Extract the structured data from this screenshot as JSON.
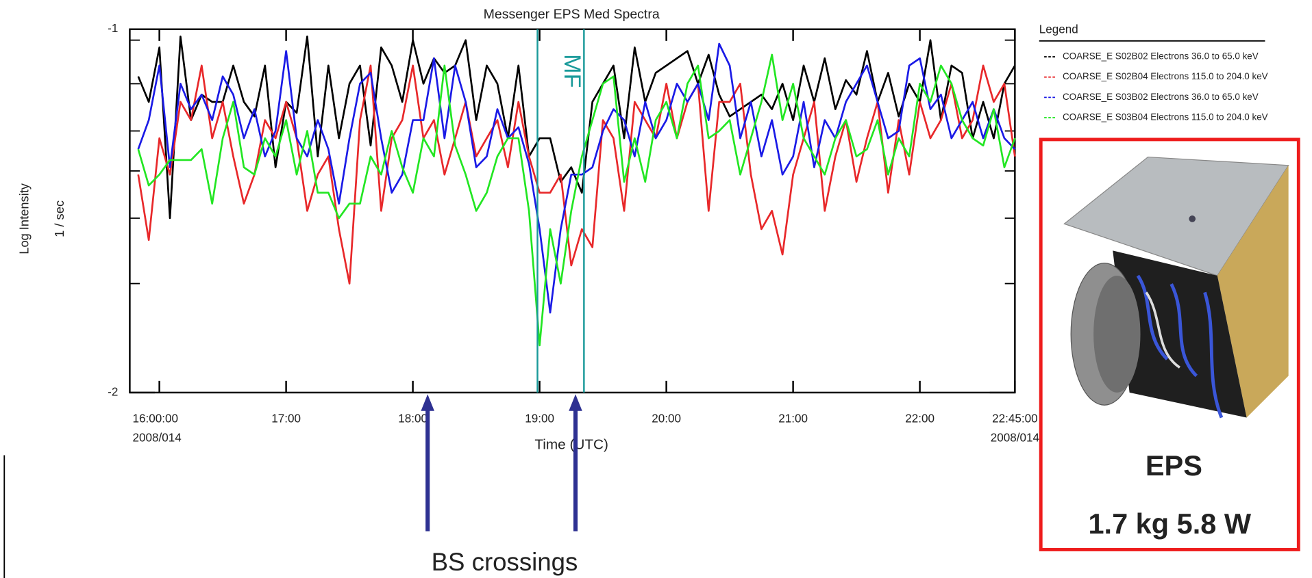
{
  "chart_data": {
    "type": "line",
    "title": "Messenger EPS Med Spectra",
    "x_label": "Time (UTC)",
    "y_label": "Log Intensity",
    "y_unit_label": "1 / sec",
    "x": [
      "15:50",
      "15:55",
      "16:00",
      "16:05",
      "16:10",
      "16:15",
      "16:20",
      "16:25",
      "16:30",
      "16:35",
      "16:40",
      "16:45",
      "16:50",
      "16:55",
      "17:00",
      "17:05",
      "17:10",
      "17:15",
      "17:20",
      "17:25",
      "17:30",
      "17:35",
      "17:40",
      "17:45",
      "17:50",
      "17:55",
      "18:00",
      "18:05",
      "18:10",
      "18:15",
      "18:20",
      "18:25",
      "18:30",
      "18:35",
      "18:40",
      "18:45",
      "18:50",
      "18:55",
      "19:00",
      "19:05",
      "19:10",
      "19:15",
      "19:20",
      "19:25",
      "19:30",
      "19:35",
      "19:40",
      "19:45",
      "19:50",
      "19:55",
      "20:00",
      "20:05",
      "20:10",
      "20:15",
      "20:20",
      "20:25",
      "20:30",
      "20:35",
      "20:40",
      "20:45",
      "20:50",
      "20:55",
      "21:00",
      "21:05",
      "21:10",
      "21:15",
      "21:20",
      "21:25",
      "21:30",
      "21:35",
      "21:40",
      "21:45",
      "21:50",
      "21:55",
      "22:00",
      "22:05",
      "22:10",
      "22:15",
      "22:20",
      "22:25",
      "22:30",
      "22:35",
      "22:40",
      "22:45"
    ],
    "xlim": [
      "15:46",
      "22:45"
    ],
    "xticks": [
      {
        "value": "16:00",
        "label": "16:00:00"
      },
      {
        "value": "17:00",
        "label": "17:00"
      },
      {
        "value": "18:00",
        "label": "18:00"
      },
      {
        "value": "19:00",
        "label": "19:00"
      },
      {
        "value": "20:00",
        "label": "20:00"
      },
      {
        "value": "21:00",
        "label": "21:00"
      },
      {
        "value": "22:00",
        "label": "22:00"
      },
      {
        "value": "22:45",
        "label": "22:45:00"
      }
    ],
    "xtick_sublabels": [
      {
        "value": "16:00",
        "label": "2008/014"
      },
      {
        "value": "22:45",
        "label": "2008/014"
      }
    ],
    "ylim": [
      -2,
      -1
    ],
    "yticks": [
      -1,
      -2
    ],
    "yminorticks": [
      -1.03,
      -1.15,
      -1.28,
      -1.39,
      -1.52,
      -1.7
    ],
    "legend_title": "Legend",
    "legend_position": "right",
    "series": [
      {
        "name": "COARSE_E S02B02 Electrons 36.0 to 65.0 keV",
        "color": "#000000",
        "values": [
          -1.13,
          -1.2,
          -1.05,
          -1.52,
          -1.02,
          -1.25,
          -1.18,
          -1.2,
          -1.2,
          -1.1,
          -1.2,
          -1.24,
          -1.1,
          -1.38,
          -1.2,
          -1.23,
          -1.02,
          -1.35,
          -1.1,
          -1.3,
          -1.15,
          -1.1,
          -1.32,
          -1.05,
          -1.1,
          -1.2,
          -1.03,
          -1.15,
          -1.08,
          -1.12,
          -1.1,
          -1.03,
          -1.25,
          -1.1,
          -1.15,
          -1.3,
          -1.1,
          -1.35,
          -1.3,
          -1.3,
          -1.42,
          -1.38,
          -1.45,
          -1.2,
          -1.15,
          -1.1,
          -1.3,
          -1.05,
          -1.2,
          -1.12,
          -1.1,
          -1.08,
          -1.06,
          -1.15,
          -1.07,
          -1.18,
          -1.24,
          -1.22,
          -1.2,
          -1.18,
          -1.22,
          -1.15,
          -1.25,
          -1.1,
          -1.2,
          -1.08,
          -1.22,
          -1.14,
          -1.18,
          -1.06,
          -1.2,
          -1.12,
          -1.24,
          -1.15,
          -1.2,
          -1.03,
          -1.25,
          -1.1,
          -1.12,
          -1.3,
          -1.2,
          -1.3,
          -1.15,
          -1.1
        ]
      },
      {
        "name": "COARSE_E S02B04 Electrons 115.0 to 204.0 keV",
        "color": "#e8282a",
        "values": [
          -1.4,
          -1.58,
          -1.3,
          -1.4,
          -1.2,
          -1.25,
          -1.1,
          -1.3,
          -1.2,
          -1.35,
          -1.48,
          -1.4,
          -1.25,
          -1.3,
          -1.2,
          -1.3,
          -1.5,
          -1.4,
          -1.35,
          -1.55,
          -1.7,
          -1.25,
          -1.1,
          -1.5,
          -1.3,
          -1.25,
          -1.1,
          -1.3,
          -1.25,
          -1.4,
          -1.3,
          -1.2,
          -1.35,
          -1.3,
          -1.25,
          -1.38,
          -1.2,
          -1.35,
          -1.45,
          -1.45,
          -1.4,
          -1.65,
          -1.55,
          -1.6,
          -1.25,
          -1.3,
          -1.5,
          -1.2,
          -1.25,
          -1.3,
          -1.15,
          -1.3,
          -1.2,
          -1.15,
          -1.5,
          -1.2,
          -1.2,
          -1.15,
          -1.4,
          -1.55,
          -1.5,
          -1.62,
          -1.4,
          -1.3,
          -1.2,
          -1.5,
          -1.35,
          -1.25,
          -1.42,
          -1.3,
          -1.2,
          -1.45,
          -1.25,
          -1.4,
          -1.2,
          -1.3,
          -1.25,
          -1.15,
          -1.3,
          -1.25,
          -1.1,
          -1.2,
          -1.15,
          -1.35
        ]
      },
      {
        "name": "COARSE_E S03B02 Electrons 36.0 to 65.0 keV",
        "color": "#1a1ae6",
        "values": [
          -1.33,
          -1.25,
          -1.1,
          -1.38,
          -1.15,
          -1.22,
          -1.18,
          -1.25,
          -1.13,
          -1.18,
          -1.3,
          -1.22,
          -1.35,
          -1.28,
          -1.06,
          -1.3,
          -1.35,
          -1.25,
          -1.33,
          -1.48,
          -1.3,
          -1.15,
          -1.12,
          -1.3,
          -1.45,
          -1.4,
          -1.25,
          -1.25,
          -1.08,
          -1.3,
          -1.1,
          -1.2,
          -1.38,
          -1.35,
          -1.22,
          -1.3,
          -1.27,
          -1.37,
          -1.55,
          -1.78,
          -1.55,
          -1.4,
          -1.4,
          -1.38,
          -1.28,
          -1.22,
          -1.25,
          -1.35,
          -1.2,
          -1.3,
          -1.25,
          -1.15,
          -1.2,
          -1.15,
          -1.25,
          -1.04,
          -1.1,
          -1.3,
          -1.2,
          -1.35,
          -1.25,
          -1.4,
          -1.35,
          -1.2,
          -1.38,
          -1.25,
          -1.3,
          -1.2,
          -1.15,
          -1.1,
          -1.2,
          -1.3,
          -1.28,
          -1.1,
          -1.08,
          -1.22,
          -1.18,
          -1.3,
          -1.25,
          -1.2,
          -1.3,
          -1.22,
          -1.3,
          -1.33
        ]
      },
      {
        "name": "COARSE_E S03B04 Electrons 115.0 to 204.0 keV",
        "color": "#22e622",
        "values": [
          -1.33,
          -1.43,
          -1.4,
          -1.36,
          -1.36,
          -1.36,
          -1.33,
          -1.48,
          -1.3,
          -1.2,
          -1.38,
          -1.4,
          -1.3,
          -1.35,
          -1.25,
          -1.4,
          -1.28,
          -1.45,
          -1.45,
          -1.52,
          -1.48,
          -1.48,
          -1.35,
          -1.4,
          -1.28,
          -1.38,
          -1.45,
          -1.3,
          -1.35,
          -1.1,
          -1.32,
          -1.4,
          -1.5,
          -1.45,
          -1.35,
          -1.3,
          -1.3,
          -1.5,
          -1.87,
          -1.55,
          -1.7,
          -1.5,
          -1.35,
          -1.25,
          -1.15,
          -1.13,
          -1.42,
          -1.3,
          -1.42,
          -1.25,
          -1.2,
          -1.3,
          -1.15,
          -1.1,
          -1.3,
          -1.28,
          -1.25,
          -1.4,
          -1.3,
          -1.2,
          -1.07,
          -1.25,
          -1.15,
          -1.3,
          -1.35,
          -1.4,
          -1.3,
          -1.25,
          -1.35,
          -1.33,
          -1.25,
          -1.4,
          -1.3,
          -1.35,
          -1.15,
          -1.2,
          -1.1,
          -1.15,
          -1.25,
          -1.3,
          -1.32,
          -1.22,
          -1.38,
          -1.3
        ]
      }
    ],
    "annotations": [
      {
        "text": "MF",
        "x": [
          "18:59",
          "19:21"
        ],
        "color": "#1a9a9a"
      },
      {
        "text": "BS crossings",
        "x": [
          "18:07",
          "19:17"
        ],
        "color": "#2e3192"
      }
    ]
  },
  "instrument": {
    "name": "EPS",
    "specs": "1.7 kg 5.8 W"
  }
}
